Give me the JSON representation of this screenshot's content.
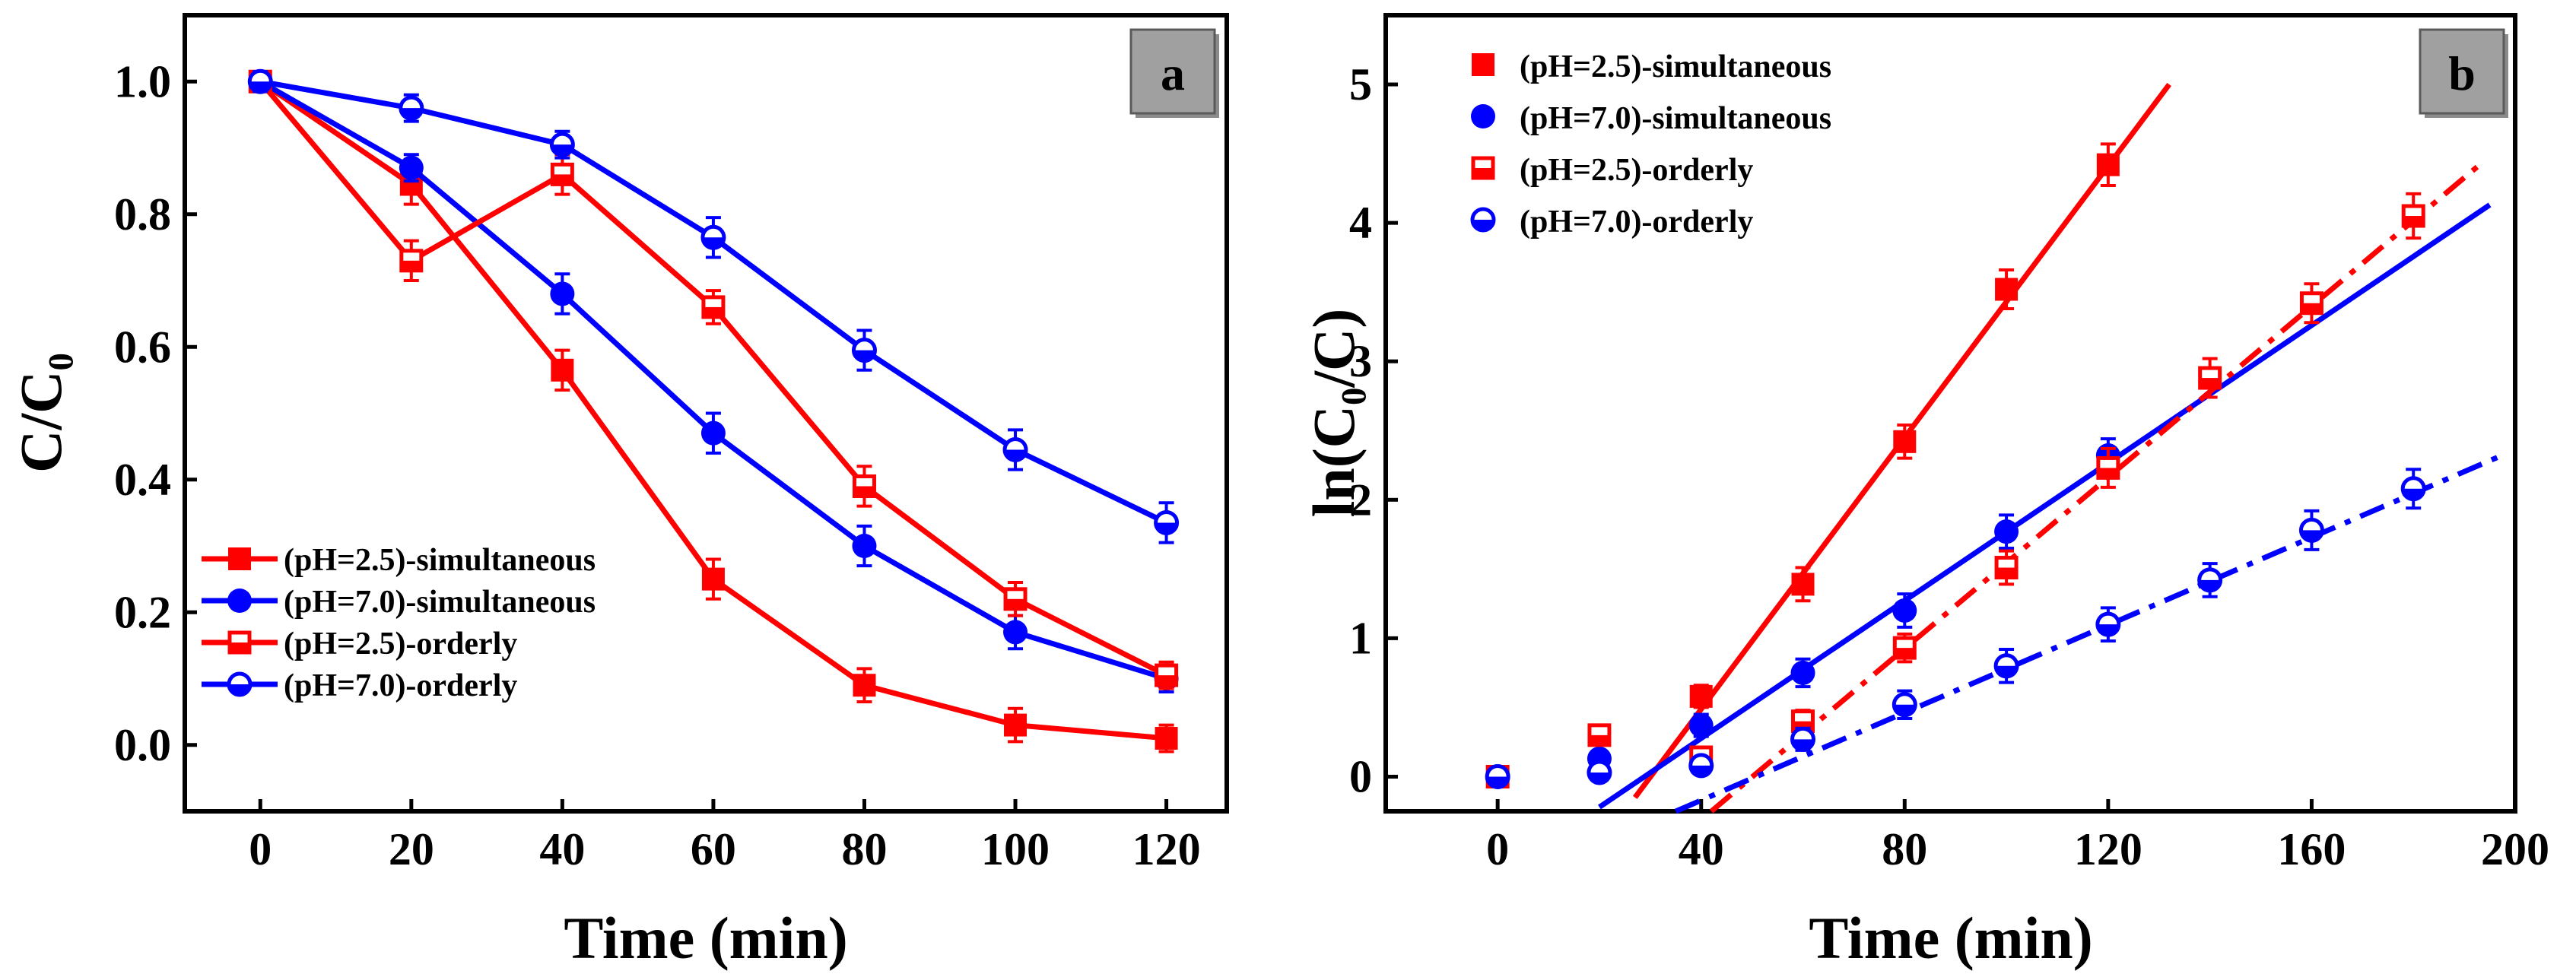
{
  "chart_data": [
    {
      "type": "line",
      "panel_label": "a",
      "xlabel": "Time (min)",
      "ylabel": "C/C₀",
      "xlim": [
        -10,
        128
      ],
      "ylim": [
        -0.1,
        1.1
      ],
      "xticks": [
        "0",
        "20",
        "40",
        "60",
        "80",
        "100",
        "120"
      ],
      "yticks": [
        "0.0",
        "0.2",
        "0.4",
        "0.6",
        "0.8",
        "1.0"
      ],
      "legend_position": "bottom-left",
      "x": [
        0,
        20,
        40,
        60,
        80,
        100,
        120
      ],
      "series": [
        {
          "name": "(pH=2.5)-simultaneous",
          "color": "#ff0000",
          "marker": "square-filled",
          "values": [
            1.0,
            0.845,
            0.565,
            0.25,
            0.09,
            0.03,
            0.01
          ],
          "error": [
            0.015,
            0.03,
            0.03,
            0.03,
            0.025,
            0.025,
            0.02
          ]
        },
        {
          "name": "(pH=7.0)-simultaneous",
          "color": "#0000ff",
          "marker": "circle-filled",
          "values": [
            1.0,
            0.87,
            0.68,
            0.47,
            0.3,
            0.17,
            0.1
          ],
          "error": [
            0.015,
            0.02,
            0.03,
            0.03,
            0.03,
            0.025,
            0.02
          ]
        },
        {
          "name": "(pH=2.5)-orderly",
          "color": "#ff0000",
          "marker": "square-half",
          "values": [
            1.0,
            0.73,
            0.86,
            0.66,
            0.39,
            0.22,
            0.105
          ],
          "error": [
            0.015,
            0.03,
            0.03,
            0.025,
            0.03,
            0.025,
            0.02
          ]
        },
        {
          "name": "(pH=7.0)-orderly",
          "color": "#0000ff",
          "marker": "circle-half",
          "values": [
            1.0,
            0.96,
            0.905,
            0.765,
            0.595,
            0.445,
            0.335
          ],
          "error": [
            0.015,
            0.02,
            0.02,
            0.03,
            0.03,
            0.03,
            0.03
          ]
        }
      ]
    },
    {
      "type": "scatter",
      "panel_label": "b",
      "xlabel": "Time (min)",
      "ylabel": "ln(C₀/C)",
      "xlim": [
        -22,
        200
      ],
      "ylim": [
        -0.25,
        5.5
      ],
      "xticks": [
        "0",
        "40",
        "80",
        "120",
        "160",
        "200"
      ],
      "yticks": [
        "0",
        "1",
        "2",
        "3",
        "4",
        "5"
      ],
      "legend_position": "top-left",
      "series": [
        {
          "name": "(pH=2.5)-simultaneous",
          "color": "#ff0000",
          "marker": "square-filled",
          "x": [
            0,
            20,
            40,
            60,
            80,
            100,
            120
          ],
          "values": [
            0.0,
            0.3,
            0.58,
            1.39,
            2.42,
            3.52,
            4.42
          ],
          "error": [
            0.04,
            0.06,
            0.08,
            0.12,
            0.12,
            0.14,
            0.15
          ],
          "fit": {
            "style": "solid",
            "x": [
              27,
              132
            ],
            "y": [
              -0.15,
              5.0
            ]
          }
        },
        {
          "name": "(pH=7.0)-simultaneous",
          "color": "#0000ff",
          "marker": "circle-filled",
          "x": [
            0,
            20,
            40,
            60,
            80,
            100,
            120
          ],
          "values": [
            0.0,
            0.13,
            0.37,
            0.75,
            1.2,
            1.77,
            2.32
          ],
          "error": [
            0.04,
            0.05,
            0.08,
            0.1,
            0.12,
            0.12,
            0.12
          ],
          "fit": {
            "style": "solid",
            "x": [
              20,
              195
            ],
            "y": [
              -0.22,
              4.13
            ]
          }
        },
        {
          "name": "(pH=2.5)-orderly",
          "color": "#ff0000",
          "marker": "square-half",
          "x": [
            0,
            20,
            40,
            60,
            80,
            100,
            120,
            140,
            160,
            180
          ],
          "values": [
            0.0,
            0.3,
            0.14,
            0.4,
            0.93,
            1.51,
            2.23,
            2.88,
            3.42,
            4.05
          ],
          "error": [
            0.04,
            0.06,
            0.06,
            0.08,
            0.1,
            0.12,
            0.14,
            0.14,
            0.14,
            0.16
          ],
          "fit": {
            "style": "dashdot",
            "x": [
              42,
              194
            ],
            "y": [
              -0.25,
              4.45
            ]
          }
        },
        {
          "name": "(pH=7.0)-orderly",
          "color": "#0000ff",
          "marker": "circle-half",
          "x": [
            0,
            20,
            40,
            60,
            80,
            100,
            120,
            140,
            160,
            180
          ],
          "values": [
            0.0,
            0.03,
            0.08,
            0.27,
            0.52,
            0.8,
            1.1,
            1.42,
            1.78,
            2.08
          ],
          "error": [
            0.04,
            0.05,
            0.06,
            0.08,
            0.1,
            0.12,
            0.12,
            0.12,
            0.14,
            0.14
          ],
          "fit": {
            "style": "dashdot",
            "x": [
              35,
              198
            ],
            "y": [
              -0.25,
              2.33
            ]
          }
        }
      ]
    }
  ]
}
